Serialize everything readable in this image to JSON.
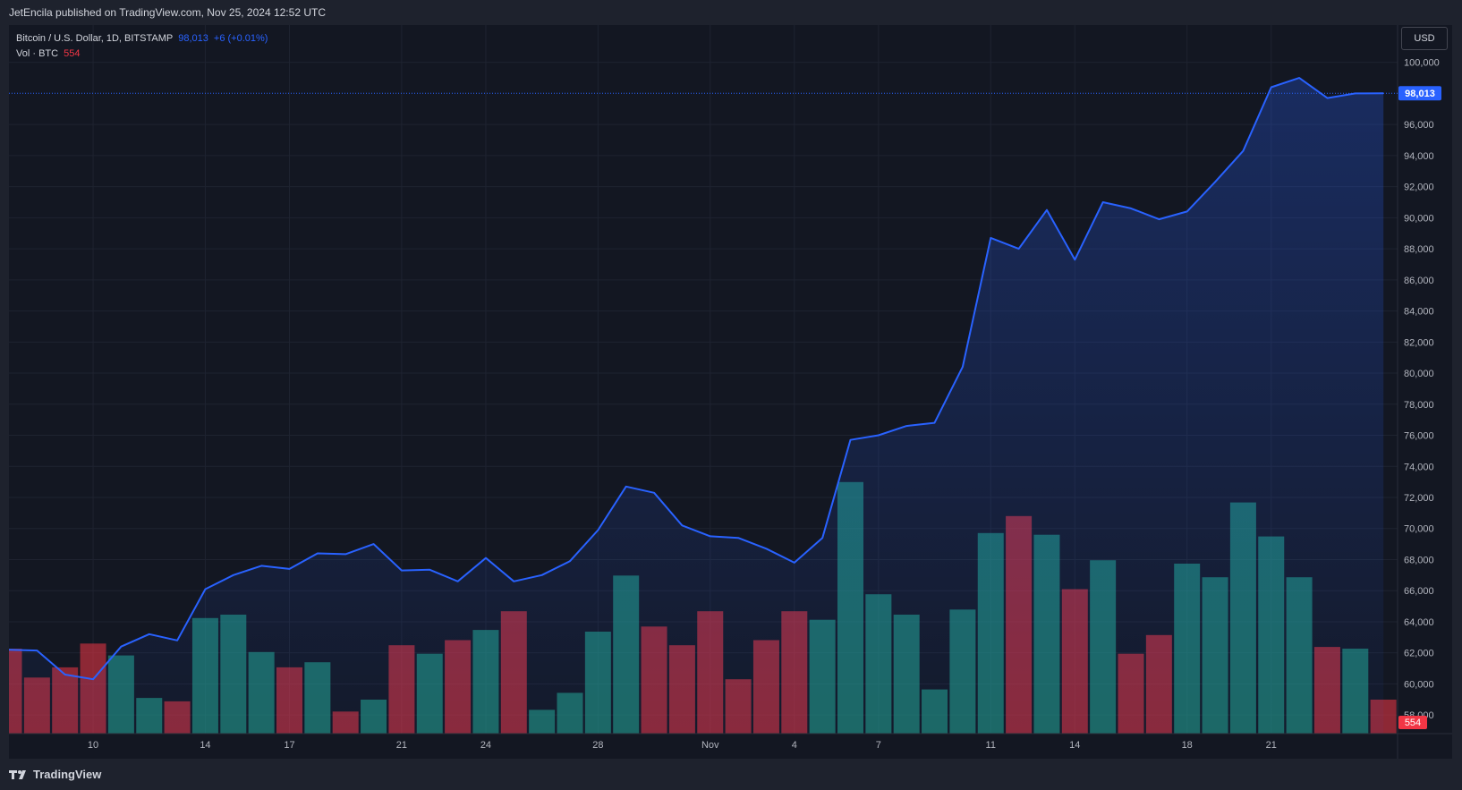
{
  "header": {
    "published_line": "JetEncila published on TradingView.com, Nov 25, 2024 12:52 UTC"
  },
  "legend": {
    "symbol": "Bitcoin / U.S. Dollar, 1D, BITSTAMP",
    "price": "98,013",
    "change": "+6 (+0.01%)",
    "vol_label": "Vol · BTC",
    "vol_value": "554"
  },
  "currency_button": "USD",
  "footer": {
    "brand": "TradingView"
  },
  "colors": {
    "background": "#131722",
    "line": "#2962ff",
    "up_volume": "#22ab94",
    "down_volume": "#f23645",
    "grid": "#1e222d"
  },
  "chart_data": {
    "type": "area",
    "price_line_label": "98,013",
    "volume_label": "554",
    "ylim": [
      56800,
      102400
    ],
    "yticks": [
      "100,000",
      "96,000",
      "94,000",
      "92,000",
      "90,000",
      "88,000",
      "86,000",
      "84,000",
      "82,000",
      "80,000",
      "78,000",
      "76,000",
      "74,000",
      "72,000",
      "70,000",
      "68,000",
      "66,000",
      "64,000",
      "62,000",
      "60,000",
      "58,000"
    ],
    "ytick_values": [
      100000,
      96000,
      94000,
      92000,
      90000,
      88000,
      86000,
      84000,
      82000,
      80000,
      78000,
      76000,
      74000,
      72000,
      70000,
      68000,
      66000,
      64000,
      62000,
      60000,
      58000
    ],
    "xticks": [
      {
        "index": 3,
        "label": "10"
      },
      {
        "index": 7,
        "label": "14"
      },
      {
        "index": 10,
        "label": "17"
      },
      {
        "index": 14,
        "label": "21"
      },
      {
        "index": 17,
        "label": "24"
      },
      {
        "index": 21,
        "label": "28"
      },
      {
        "index": 25,
        "label": "Nov"
      },
      {
        "index": 28,
        "label": "4"
      },
      {
        "index": 31,
        "label": "7"
      },
      {
        "index": 35,
        "label": "11"
      },
      {
        "index": 38,
        "label": "14"
      },
      {
        "index": 42,
        "label": "18"
      },
      {
        "index": 45,
        "label": "21"
      }
    ],
    "series": [
      {
        "values": [
          62200,
          62150,
          60600,
          60300,
          62400,
          63200,
          62800,
          66100,
          67000,
          67600,
          67400,
          68400,
          68350,
          69000,
          67300,
          67350,
          66600,
          68100,
          66600,
          67000,
          67900,
          69900,
          72700,
          72300,
          70200,
          69500,
          69400,
          68700,
          67800,
          69400,
          75700,
          76000,
          76600,
          76800,
          80400,
          88700,
          88000,
          90500,
          87300,
          91000,
          90600,
          89900,
          90400,
          92300,
          94300,
          98400,
          99000,
          97700,
          98000,
          98013
        ]
      }
    ],
    "volume_values": [
      50,
      33,
      39,
      53,
      46,
      21,
      19,
      68,
      70,
      48,
      39,
      42,
      13,
      20,
      52,
      47,
      55,
      61,
      72,
      14,
      24,
      60,
      93,
      63,
      52,
      72,
      32,
      55,
      72,
      67,
      148,
      82,
      70,
      26,
      73,
      118,
      128,
      117,
      85,
      102,
      47,
      58,
      100,
      92,
      136,
      116,
      92,
      51,
      50,
      20
    ],
    "volume_direction": [
      "down",
      "down",
      "down",
      "down",
      "up",
      "up",
      "down",
      "up",
      "up",
      "up",
      "down",
      "up",
      "down",
      "up",
      "down",
      "up",
      "down",
      "up",
      "down",
      "up",
      "up",
      "up",
      "up",
      "down",
      "down",
      "down",
      "down",
      "down",
      "down",
      "up",
      "up",
      "up",
      "up",
      "up",
      "up",
      "up",
      "down",
      "up",
      "down",
      "up",
      "down",
      "down",
      "up",
      "up",
      "up",
      "up",
      "up",
      "down",
      "up",
      "down"
    ]
  }
}
